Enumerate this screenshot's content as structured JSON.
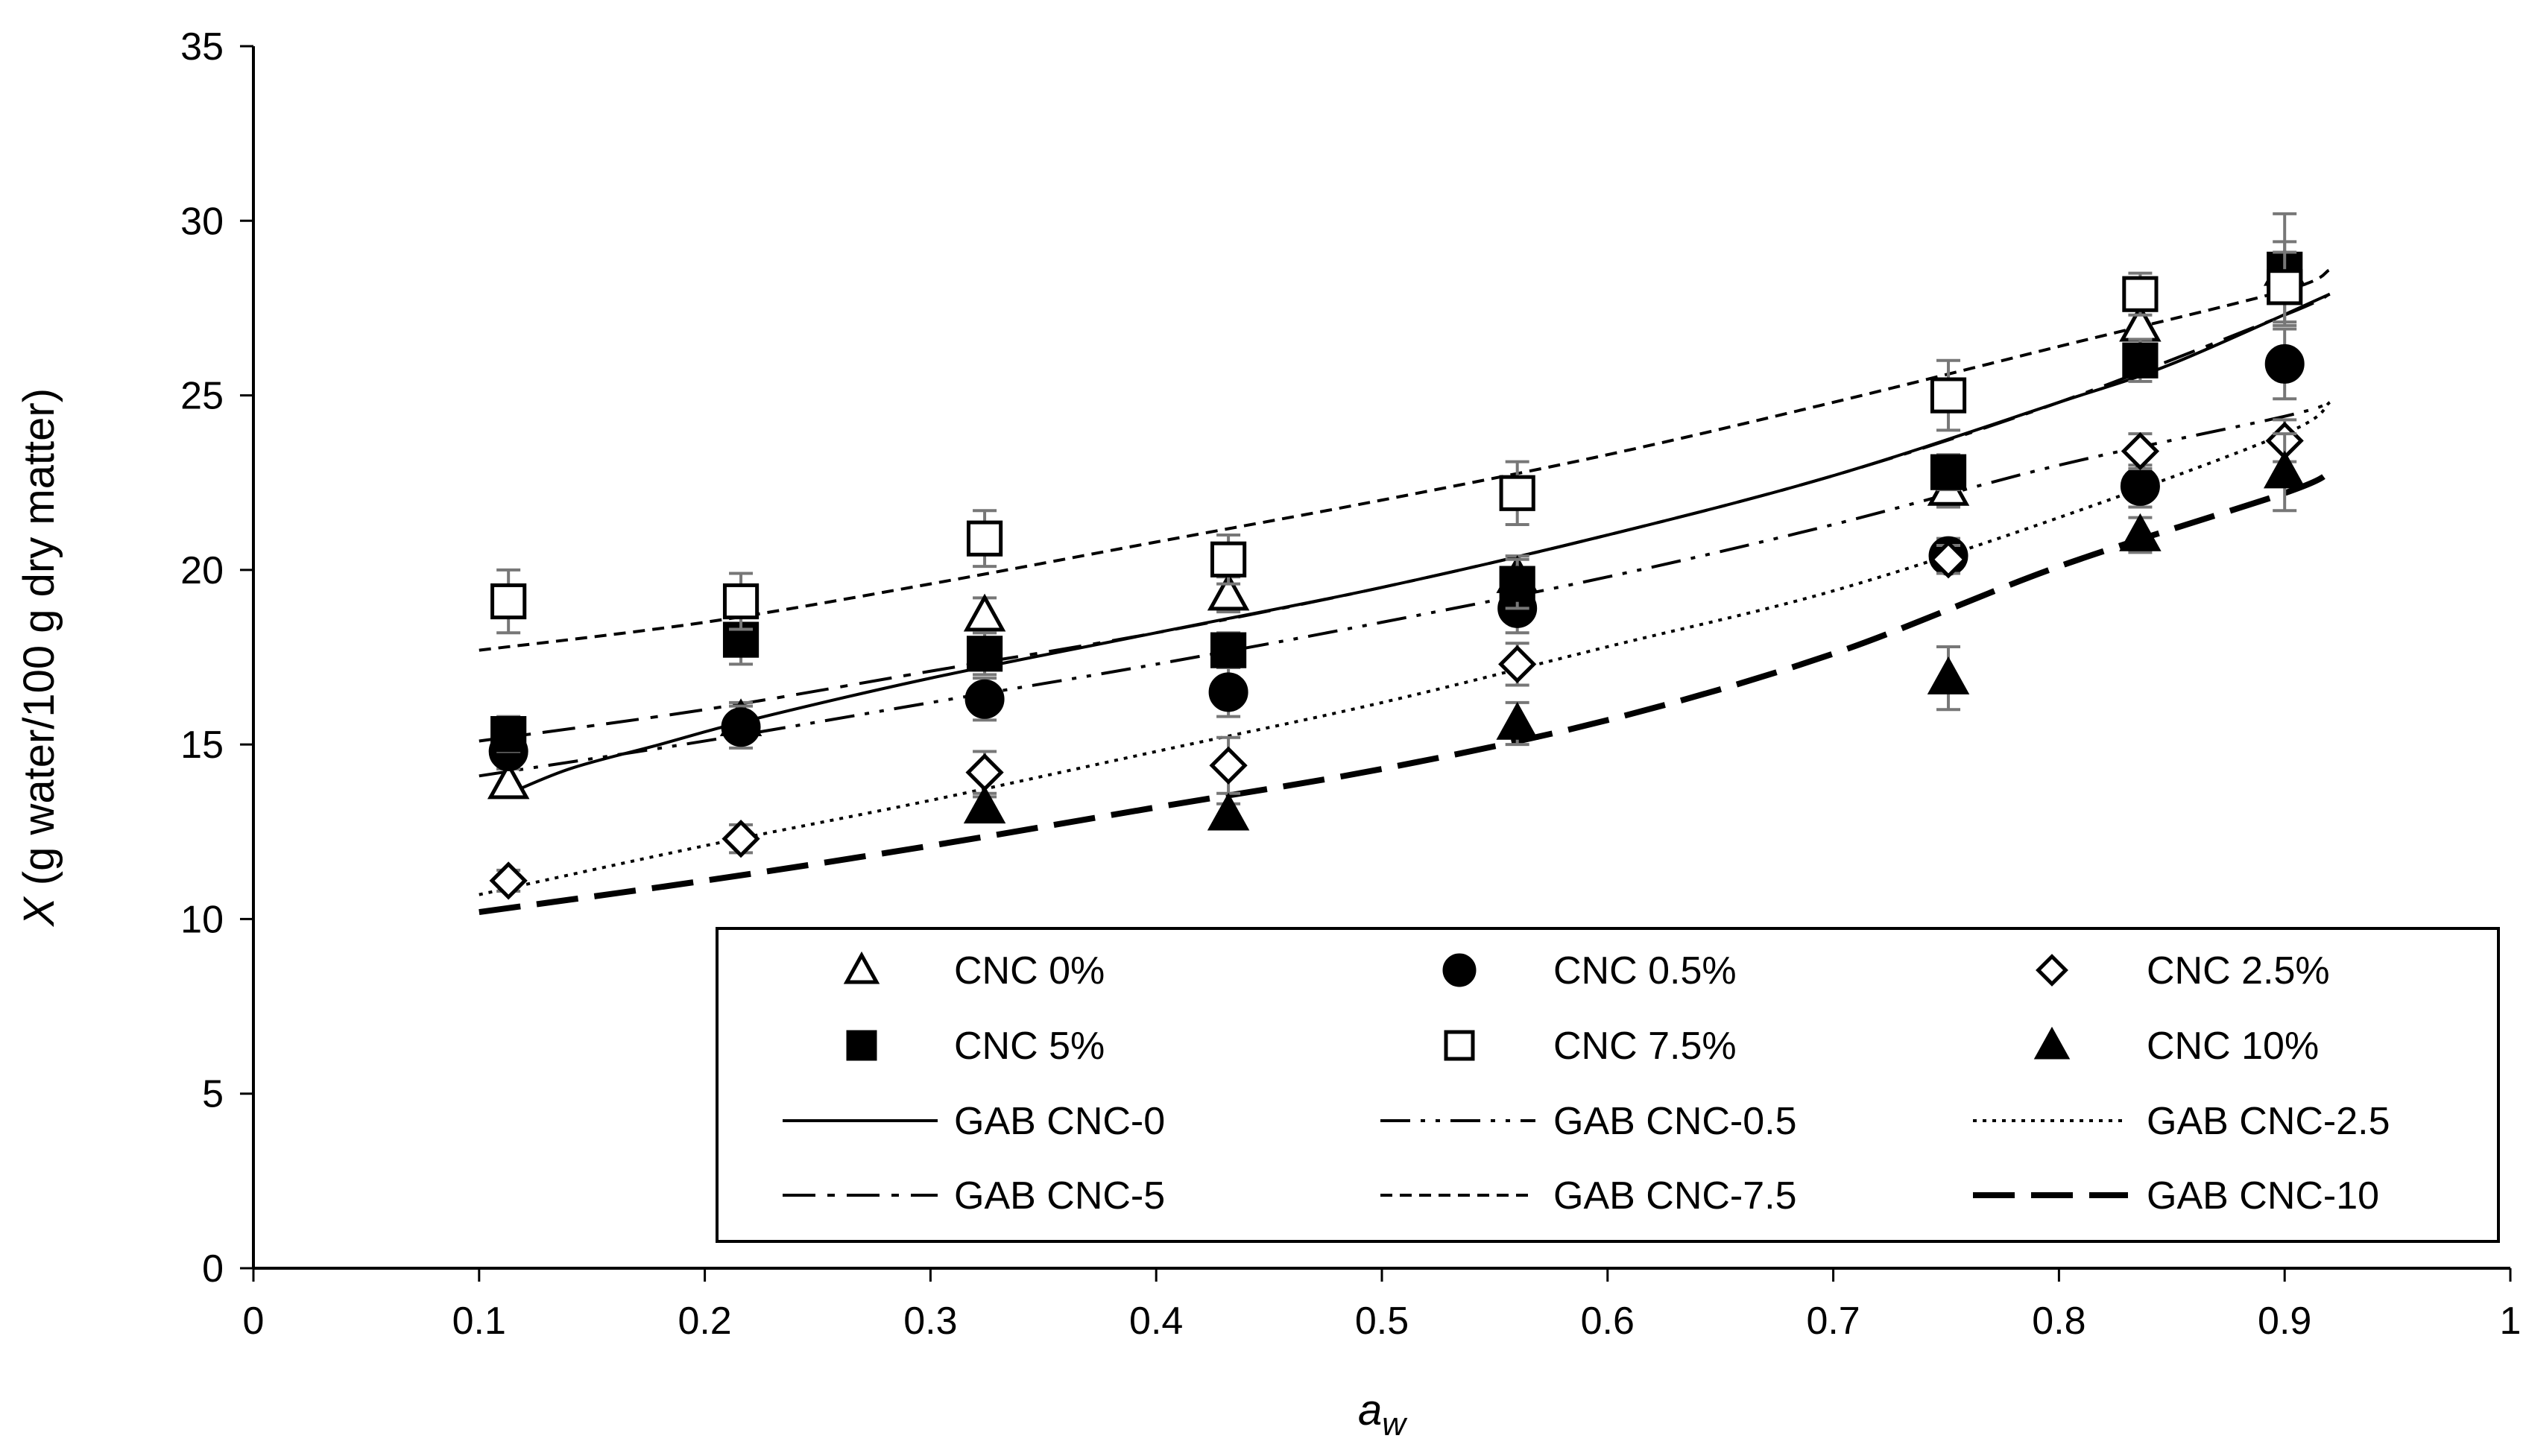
{
  "chart_data": {
    "type": "scatter",
    "xlabel": "a",
    "xlabel_sub": "w",
    "ylabel_italic": "X",
    "ylabel": " (g water/100 g dry matter)",
    "xlim": [
      0,
      1
    ],
    "ylim": [
      0,
      35
    ],
    "x_ticks": [
      0,
      0.1,
      0.2,
      0.3,
      0.4,
      0.5,
      0.6,
      0.7,
      0.8,
      0.9,
      1
    ],
    "x_tick_labels": [
      "0",
      "0.1",
      "0.2",
      "0.3",
      "0.4",
      "0.5",
      "0.6",
      "0.7",
      "0.8",
      "0.9",
      "1"
    ],
    "y_ticks": [
      0,
      5,
      10,
      15,
      20,
      25,
      30,
      35
    ],
    "y_tick_labels": [
      "0",
      "5",
      "10",
      "15",
      "20",
      "25",
      "30",
      "35"
    ],
    "grid": false,
    "legend_position": "bottom-right inside",
    "x": [
      0.113,
      0.216,
      0.324,
      0.432,
      0.56,
      0.751,
      0.836,
      0.9
    ],
    "series": [
      {
        "name": "CNC 0%",
        "marker": "triangle-open",
        "values": [
          13.9,
          15.7,
          18.7,
          19.3,
          19.8,
          22.3,
          27.0,
          28.6
        ],
        "errors": [
          0.4,
          0.5,
          0.5,
          0.5,
          0.6,
          0.5,
          0.6,
          1.6
        ]
      },
      {
        "name": "CNC 0.5%",
        "marker": "circle-filled",
        "values": [
          14.8,
          15.5,
          16.3,
          16.5,
          18.9,
          20.4,
          22.4,
          25.9
        ],
        "errors": [
          0.5,
          0.6,
          0.6,
          0.7,
          0.7,
          0.5,
          0.6,
          1.0
        ]
      },
      {
        "name": "CNC 2.5%",
        "marker": "diamond-open",
        "values": [
          11.1,
          12.3,
          14.2,
          14.4,
          17.3,
          20.3,
          23.4,
          23.7
        ],
        "errors": [
          0.3,
          0.4,
          0.6,
          0.8,
          0.6,
          0.4,
          0.5,
          0.6
        ]
      },
      {
        "name": "CNC 5%",
        "marker": "square-filled",
        "values": [
          15.3,
          18.0,
          17.6,
          17.7,
          19.6,
          22.8,
          26.0,
          28.6
        ],
        "errors": [
          0.5,
          0.7,
          0.6,
          0.5,
          0.7,
          0.5,
          0.6,
          0.8
        ]
      },
      {
        "name": "CNC 7.5%",
        "marker": "square-open",
        "values": [
          19.1,
          19.1,
          20.9,
          20.3,
          22.2,
          25.0,
          27.9,
          28.1
        ],
        "errors": [
          0.9,
          0.8,
          0.8,
          0.7,
          0.9,
          1.0,
          0.6,
          1.0
        ]
      },
      {
        "name": "CNC 10%",
        "marker": "triangle-filled",
        "values": [
          null,
          null,
          13.2,
          13.0,
          15.6,
          16.9,
          21.0,
          22.8
        ],
        "errors": [
          0,
          0,
          0.3,
          0.3,
          0.6,
          0.9,
          0.5,
          1.1
        ]
      }
    ],
    "fit_lines": [
      {
        "name": "GAB CNC-0",
        "style": "solid",
        "x": [
          0.11,
          0.14,
          0.18,
          0.22,
          0.3,
          0.4,
          0.5,
          0.6,
          0.7,
          0.8,
          0.85,
          0.92
        ],
        "y": [
          13.5,
          14.3,
          15.0,
          15.7,
          16.9,
          18.2,
          19.5,
          21.0,
          22.7,
          24.8,
          25.9,
          27.9
        ]
      },
      {
        "name": "GAB CNC-0.5",
        "style": "dash-dot-dot",
        "x": [
          0.1,
          0.2,
          0.3,
          0.4,
          0.5,
          0.6,
          0.7,
          0.8,
          0.9,
          0.92
        ],
        "y": [
          14.1,
          15.1,
          16.2,
          17.3,
          18.5,
          19.8,
          21.3,
          23.0,
          24.4,
          24.8
        ]
      },
      {
        "name": "GAB CNC-2.5",
        "style": "dotted",
        "x": [
          0.1,
          0.2,
          0.3,
          0.4,
          0.5,
          0.6,
          0.7,
          0.8,
          0.9,
          0.92
        ],
        "y": [
          10.7,
          12.1,
          13.4,
          14.8,
          16.2,
          17.8,
          19.4,
          21.5,
          23.9,
          24.8
        ]
      },
      {
        "name": "GAB CNC-5",
        "style": "dash-dot",
        "x": [
          0.1,
          0.2,
          0.3,
          0.4,
          0.5,
          0.6,
          0.7,
          0.8,
          0.9,
          0.92
        ],
        "y": [
          15.1,
          16.0,
          17.1,
          18.2,
          19.5,
          21.0,
          22.7,
          24.8,
          27.3,
          27.9
        ]
      },
      {
        "name": "GAB CNC-7.5",
        "style": "short-dash",
        "x": [
          0.1,
          0.2,
          0.3,
          0.4,
          0.5,
          0.6,
          0.7,
          0.8,
          0.9,
          0.92
        ],
        "y": [
          17.7,
          18.5,
          19.6,
          20.8,
          22.0,
          23.3,
          24.8,
          26.4,
          28.0,
          28.6
        ]
      },
      {
        "name": "GAB CNC-10",
        "style": "long-dash-thick",
        "x": [
          0.1,
          0.2,
          0.3,
          0.4,
          0.5,
          0.6,
          0.7,
          0.8,
          0.9,
          0.92
        ],
        "y": [
          10.2,
          11.1,
          12.1,
          13.2,
          14.3,
          15.7,
          17.6,
          20.1,
          22.2,
          22.8
        ]
      }
    ]
  }
}
